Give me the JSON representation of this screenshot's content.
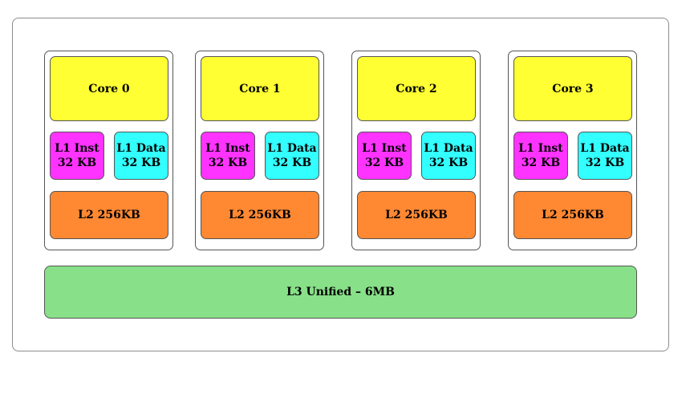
{
  "colors": {
    "core": "#ffff33",
    "l1_inst": "#ff33ff",
    "l1_data": "#33ffff",
    "l2": "#ff8833",
    "l3": "#88e088"
  },
  "cores": [
    {
      "label": "Core 0",
      "l1_inst": {
        "name": "L1 Inst",
        "size": "32 KB"
      },
      "l1_data": {
        "name": "L1 Data",
        "size": "32 KB"
      },
      "l2": "L2 256KB"
    },
    {
      "label": "Core 1",
      "l1_inst": {
        "name": "L1 Inst",
        "size": "32 KB"
      },
      "l1_data": {
        "name": "L1 Data",
        "size": "32 KB"
      },
      "l2": "L2 256KB"
    },
    {
      "label": "Core 2",
      "l1_inst": {
        "name": "L1 Inst",
        "size": "32 KB"
      },
      "l1_data": {
        "name": "L1 Data",
        "size": "32 KB"
      },
      "l2": "L2 256KB"
    },
    {
      "label": "Core 3",
      "l1_inst": {
        "name": "L1 Inst",
        "size": "32 KB"
      },
      "l1_data": {
        "name": "L1 Data",
        "size": "32 KB"
      },
      "l2": "L2 256KB"
    }
  ],
  "l3": {
    "label": "L3 Unified – 6MB"
  }
}
